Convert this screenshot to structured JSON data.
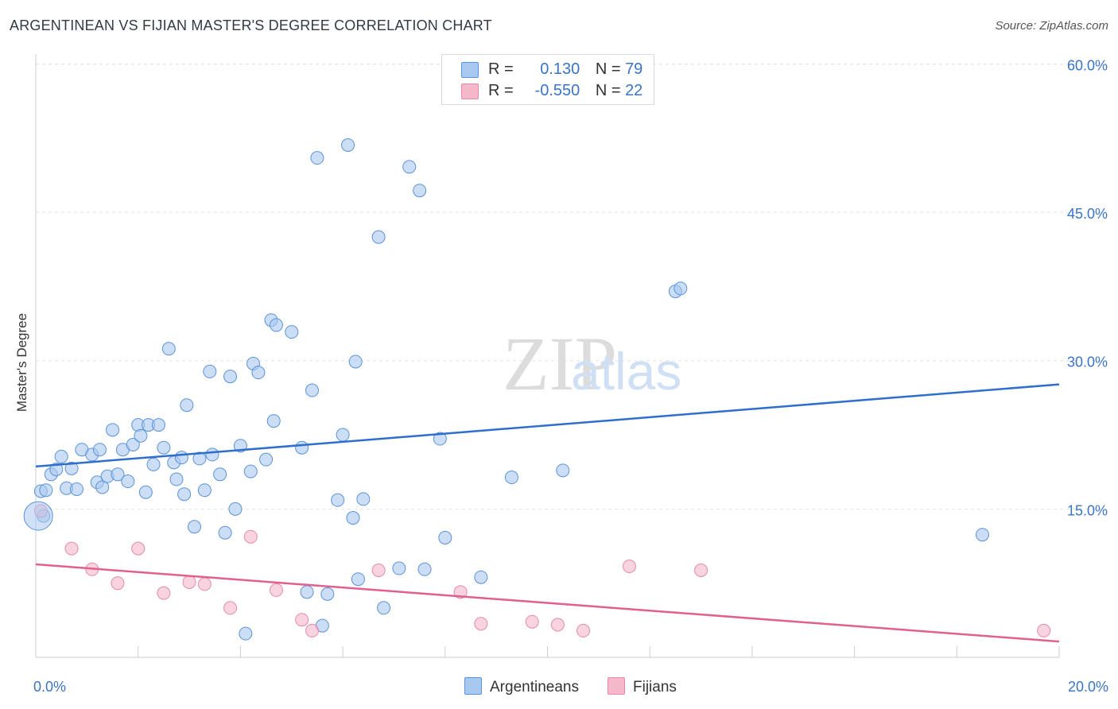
{
  "title": "ARGENTINEAN VS FIJIAN MASTER'S DEGREE CORRELATION CHART",
  "source": "Source: ZipAtlas.com",
  "watermark": {
    "zip": "ZIP",
    "atlas": "atlas"
  },
  "legend": {
    "rows": [
      {
        "r_label": "R =",
        "r_value": "0.130",
        "n_label": "N =",
        "n_value": "79",
        "color": "#a9c8f0"
      },
      {
        "r_label": "R =",
        "r_value": "-0.550",
        "n_label": "N =",
        "n_value": "22",
        "color": "#f5b8cb"
      }
    ]
  },
  "bottom_legend": [
    {
      "label": "Argentineans",
      "color": "#a9c8f0"
    },
    {
      "label": "Fijians",
      "color": "#f5b8cb"
    }
  ],
  "chart_data": {
    "type": "scatter",
    "title": "ARGENTINEAN VS FIJIAN MASTER'S DEGREE CORRELATION CHART",
    "xlabel": "",
    "ylabel": "Master's Degree",
    "xlim": [
      0,
      20
    ],
    "ylim": [
      0,
      61
    ],
    "x_tick_labels": [
      {
        "value": 0,
        "label": "0.0%"
      },
      {
        "value": 20,
        "label": "20.0%"
      }
    ],
    "y_tick_labels": [
      {
        "value": 15,
        "label": "15.0%"
      },
      {
        "value": 30,
        "label": "30.0%"
      },
      {
        "value": 45,
        "label": "45.0%"
      },
      {
        "value": 60,
        "label": "60.0%"
      }
    ],
    "series": [
      {
        "name": "Argentineans",
        "color": "#5b93d8",
        "fill": "#a9c8f0",
        "trend": {
          "x": [
            0,
            20
          ],
          "y": [
            19.3,
            27.6
          ],
          "color": "#2f6fcc"
        },
        "points": [
          [
            0.1,
            16.8
          ],
          [
            0.2,
            16.9
          ],
          [
            0.3,
            18.5
          ],
          [
            0.4,
            19.0
          ],
          [
            0.5,
            20.3
          ],
          [
            0.6,
            17.1
          ],
          [
            0.7,
            19.1
          ],
          [
            0.8,
            17.0
          ],
          [
            0.9,
            21.0
          ],
          [
            1.1,
            20.5
          ],
          [
            1.2,
            17.7
          ],
          [
            1.3,
            17.2
          ],
          [
            1.4,
            18.3
          ],
          [
            1.5,
            23.0
          ],
          [
            1.6,
            18.5
          ],
          [
            1.7,
            21.0
          ],
          [
            1.8,
            17.8
          ],
          [
            1.9,
            21.5
          ],
          [
            2.0,
            23.5
          ],
          [
            2.05,
            22.4
          ],
          [
            2.15,
            16.7
          ],
          [
            2.2,
            23.5
          ],
          [
            2.3,
            19.5
          ],
          [
            2.4,
            23.5
          ],
          [
            2.5,
            21.2
          ],
          [
            2.6,
            31.2
          ],
          [
            2.7,
            19.7
          ],
          [
            2.75,
            18.0
          ],
          [
            2.85,
            20.2
          ],
          [
            2.95,
            25.5
          ],
          [
            3.1,
            13.2
          ],
          [
            3.2,
            20.1
          ],
          [
            3.3,
            16.9
          ],
          [
            3.4,
            28.9
          ],
          [
            3.45,
            20.5
          ],
          [
            3.6,
            18.5
          ],
          [
            3.7,
            12.6
          ],
          [
            3.8,
            28.4
          ],
          [
            3.9,
            15.0
          ],
          [
            4.0,
            21.4
          ],
          [
            4.1,
            2.4
          ],
          [
            4.2,
            18.8
          ],
          [
            4.25,
            29.7
          ],
          [
            4.35,
            28.8
          ],
          [
            4.5,
            20.0
          ],
          [
            4.6,
            34.1
          ],
          [
            4.65,
            23.9
          ],
          [
            4.7,
            33.6
          ],
          [
            5.0,
            32.9
          ],
          [
            5.2,
            21.2
          ],
          [
            5.3,
            6.6
          ],
          [
            5.4,
            27.0
          ],
          [
            5.5,
            50.5
          ],
          [
            5.6,
            3.2
          ],
          [
            5.7,
            6.4
          ],
          [
            5.9,
            15.9
          ],
          [
            6.0,
            22.5
          ],
          [
            6.1,
            51.8
          ],
          [
            6.2,
            14.1
          ],
          [
            6.25,
            29.9
          ],
          [
            6.3,
            7.9
          ],
          [
            6.4,
            16.0
          ],
          [
            6.7,
            42.5
          ],
          [
            6.8,
            5.0
          ],
          [
            7.1,
            9.0
          ],
          [
            7.3,
            49.6
          ],
          [
            7.5,
            47.2
          ],
          [
            7.6,
            8.9
          ],
          [
            7.9,
            22.1
          ],
          [
            8.0,
            12.1
          ],
          [
            8.7,
            8.1
          ],
          [
            9.3,
            18.2
          ],
          [
            10.3,
            18.9
          ],
          [
            12.5,
            37.0
          ],
          [
            12.6,
            37.3
          ],
          [
            18.5,
            12.4
          ],
          [
            0.15,
            14.3
          ],
          [
            1.25,
            21.0
          ],
          [
            2.9,
            16.5
          ]
        ]
      },
      {
        "name": "Fijians",
        "color": "#e68aa8",
        "fill": "#f5b8cb",
        "trend": {
          "x": [
            0,
            20
          ],
          "y": [
            9.4,
            1.6
          ],
          "color": "#e0608e"
        },
        "points": [
          [
            0.1,
            14.8
          ],
          [
            0.7,
            11.0
          ],
          [
            1.1,
            8.9
          ],
          [
            1.6,
            7.5
          ],
          [
            2.0,
            11.0
          ],
          [
            2.5,
            6.5
          ],
          [
            3.0,
            7.6
          ],
          [
            3.3,
            7.4
          ],
          [
            3.8,
            5.0
          ],
          [
            4.2,
            12.2
          ],
          [
            4.7,
            6.8
          ],
          [
            5.2,
            3.8
          ],
          [
            5.4,
            2.7
          ],
          [
            6.7,
            8.8
          ],
          [
            8.3,
            6.6
          ],
          [
            8.7,
            3.4
          ],
          [
            9.7,
            3.6
          ],
          [
            10.2,
            3.3
          ],
          [
            10.7,
            2.7
          ],
          [
            11.6,
            9.2
          ],
          [
            13.0,
            8.8
          ],
          [
            19.7,
            2.7
          ]
        ]
      }
    ]
  }
}
